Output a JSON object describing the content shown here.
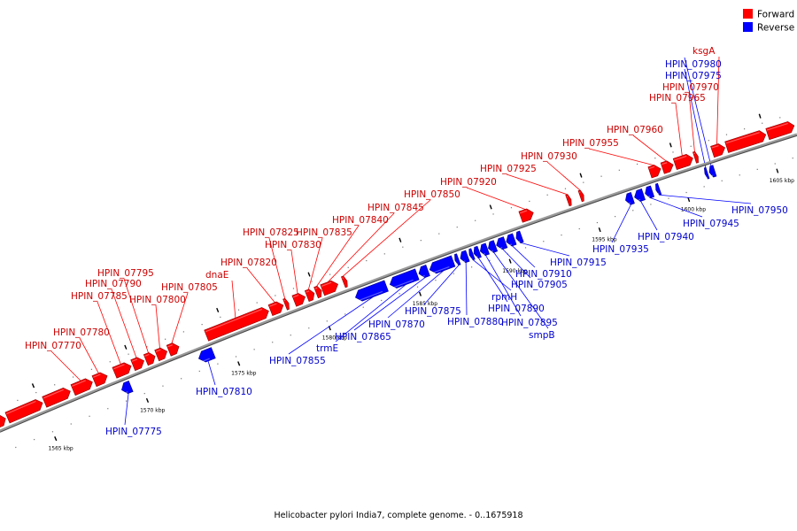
{
  "caption": "Helicobacter pylori India7, complete genome. - 0..1675918",
  "colors": {
    "forward": "#ff0000",
    "reverse": "#0000ff",
    "label_forward": "#cc0000",
    "label_reverse": "#0000cc",
    "backbone": "#808080"
  },
  "legend": [
    {
      "label": "Forward",
      "color": "#ff0000"
    },
    {
      "label": "Reverse",
      "color": "#0000ff"
    }
  ],
  "scale": {
    "start_kbp": 1562.6,
    "end_kbp": 1606.6,
    "ticks": [
      "1565 kbp",
      "1570 kbp",
      "1575 kbp",
      "1580 kbp",
      "1585 kbp",
      "1590 kbp",
      "1595 kbp",
      "1600 kbp",
      "1605 kbp"
    ]
  },
  "genes": [
    {
      "id": "HPIN_07770",
      "strand": "forward",
      "start_kbp": 1566.75,
      "end_kbp": 1567.8
    },
    {
      "id": "HPIN_07775",
      "strand": "reverse",
      "start_kbp": 1569.0,
      "end_kbp": 1569.5
    },
    {
      "id": "HPIN_07780",
      "strand": "forward",
      "start_kbp": 1567.9,
      "end_kbp": 1568.6
    },
    {
      "id": "HPIN_07785",
      "strand": "forward",
      "start_kbp": 1569.0,
      "end_kbp": 1569.9
    },
    {
      "id": "HPIN_07790",
      "strand": "forward",
      "start_kbp": 1570.0,
      "end_kbp": 1570.6
    },
    {
      "id": "HPIN_07795",
      "strand": "forward",
      "start_kbp": 1570.7,
      "end_kbp": 1571.2
    },
    {
      "id": "HPIN_07800",
      "strand": "forward",
      "start_kbp": 1571.3,
      "end_kbp": 1571.85
    },
    {
      "id": "HPIN_07805",
      "strand": "forward",
      "start_kbp": 1571.95,
      "end_kbp": 1572.5
    },
    {
      "id": "HPIN_07810",
      "strand": "reverse",
      "start_kbp": 1573.2,
      "end_kbp": 1574.0
    },
    {
      "id": "dnaE",
      "strand": "forward",
      "start_kbp": 1574.0,
      "end_kbp": 1577.4
    },
    {
      "id": "HPIN_07820",
      "strand": "forward",
      "start_kbp": 1577.5,
      "end_kbp": 1578.2
    },
    {
      "id": "HPIN_07825",
      "strand": "forward",
      "start_kbp": 1578.3,
      "end_kbp": 1578.5
    },
    {
      "id": "HPIN_07830",
      "strand": "forward",
      "start_kbp": 1578.8,
      "end_kbp": 1579.4
    },
    {
      "id": "HPIN_07835",
      "strand": "forward",
      "start_kbp": 1579.5,
      "end_kbp": 1579.9
    },
    {
      "id": "HPIN_07840",
      "strand": "forward",
      "start_kbp": 1580.0,
      "end_kbp": 1580.3
    },
    {
      "id": "HPIN_07845",
      "strand": "forward",
      "start_kbp": 1580.35,
      "end_kbp": 1581.2
    },
    {
      "id": "HPIN_07850",
      "strand": "forward",
      "start_kbp": 1581.5,
      "end_kbp": 1581.7
    },
    {
      "id": "HPIN_07855",
      "strand": "reverse",
      "start_kbp": 1581.8,
      "end_kbp": 1583.5
    },
    {
      "id": "trmE",
      "strand": "reverse",
      "start_kbp": 1583.7,
      "end_kbp": 1585.2
    },
    {
      "id": "HPIN_07865",
      "strand": "reverse",
      "start_kbp": 1585.3,
      "end_kbp": 1585.8
    },
    {
      "id": "HPIN_07870",
      "strand": "reverse",
      "start_kbp": 1585.9,
      "end_kbp": 1587.2
    },
    {
      "id": "HPIN_07875",
      "strand": "reverse",
      "start_kbp": 1587.3,
      "end_kbp": 1587.5
    },
    {
      "id": "HPIN_07880",
      "strand": "reverse",
      "start_kbp": 1587.6,
      "end_kbp": 1588.0
    },
    {
      "id": "rpmH",
      "strand": "reverse",
      "start_kbp": 1588.1,
      "end_kbp": 1588.3
    },
    {
      "id": "HPIN_07890",
      "strand": "reverse",
      "start_kbp": 1588.35,
      "end_kbp": 1588.65
    },
    {
      "id": "HPIN_07895",
      "strand": "reverse",
      "start_kbp": 1588.7,
      "end_kbp": 1589.1
    },
    {
      "id": "smpB",
      "strand": "reverse",
      "start_kbp": 1589.15,
      "end_kbp": 1589.55
    },
    {
      "id": "HPIN_07905",
      "strand": "reverse",
      "start_kbp": 1589.6,
      "end_kbp": 1590.1
    },
    {
      "id": "HPIN_07910",
      "strand": "reverse",
      "start_kbp": 1590.15,
      "end_kbp": 1590.6
    },
    {
      "id": "HPIN_07915",
      "strand": "reverse",
      "start_kbp": 1590.7,
      "end_kbp": 1591.0
    },
    {
      "id": "HPIN_07920",
      "strand": "forward",
      "start_kbp": 1591.3,
      "end_kbp": 1592.0
    },
    {
      "id": "HPIN_07925",
      "strand": "forward",
      "start_kbp": 1593.9,
      "end_kbp": 1594.1
    },
    {
      "id": "HPIN_07930",
      "strand": "forward",
      "start_kbp": 1594.6,
      "end_kbp": 1594.8
    },
    {
      "id": "HPIN_07935",
      "strand": "reverse",
      "start_kbp": 1596.8,
      "end_kbp": 1597.2
    },
    {
      "id": "HPIN_07940",
      "strand": "reverse",
      "start_kbp": 1597.3,
      "end_kbp": 1597.8
    },
    {
      "id": "HPIN_07945",
      "strand": "reverse",
      "start_kbp": 1597.9,
      "end_kbp": 1598.3
    },
    {
      "id": "HPIN_07950",
      "strand": "reverse",
      "start_kbp": 1598.5,
      "end_kbp": 1598.7
    },
    {
      "id": "HPIN_07955",
      "strand": "forward",
      "start_kbp": 1598.5,
      "end_kbp": 1599.1
    },
    {
      "id": "HPIN_07960",
      "strand": "forward",
      "start_kbp": 1599.2,
      "end_kbp": 1599.8
    },
    {
      "id": "HPIN_07965",
      "strand": "forward",
      "start_kbp": 1599.9,
      "end_kbp": 1600.9
    },
    {
      "id": "HPIN_07970",
      "strand": "forward",
      "start_kbp": 1601.0,
      "end_kbp": 1601.2
    },
    {
      "id": "HPIN_07975",
      "strand": "reverse",
      "start_kbp": 1601.25,
      "end_kbp": 1601.4
    },
    {
      "id": "HPIN_07980",
      "strand": "reverse",
      "start_kbp": 1601.5,
      "end_kbp": 1601.8
    },
    {
      "id": "ksgA",
      "strand": "forward",
      "start_kbp": 1602.0,
      "end_kbp": 1602.7
    },
    {
      "id": "",
      "strand": "forward",
      "start_kbp": 1602.8,
      "end_kbp": 1605.0
    },
    {
      "id": "",
      "strand": "forward",
      "start_kbp": 1605.1,
      "end_kbp": 1606.6
    },
    {
      "id": "",
      "strand": "forward",
      "start_kbp": 1562.6,
      "end_kbp": 1563.1
    },
    {
      "id": "",
      "strand": "forward",
      "start_kbp": 1563.2,
      "end_kbp": 1565.1
    },
    {
      "id": "",
      "strand": "forward",
      "start_kbp": 1565.2,
      "end_kbp": 1566.6
    }
  ]
}
